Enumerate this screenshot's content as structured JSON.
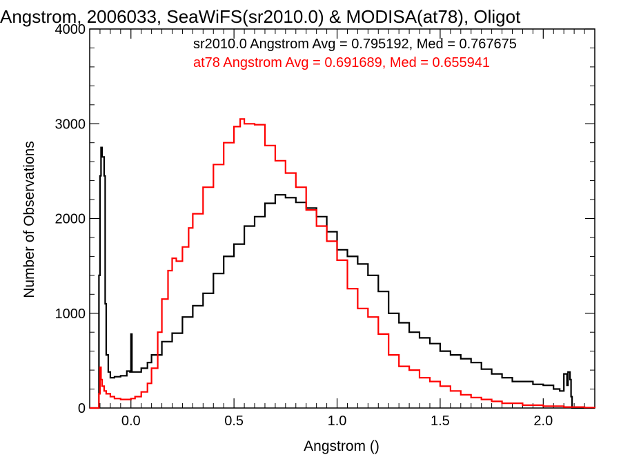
{
  "chart_data": {
    "type": "line",
    "title": "Angstrom, 2006033, SeaWiFS(sr2010.0) & MODISA(at78), Oligot",
    "xlabel": "Angstrom ()",
    "ylabel": "Number of Observations",
    "xlim": [
      -0.2,
      2.25
    ],
    "ylim": [
      0,
      4000
    ],
    "xticks": [
      0.0,
      0.5,
      1.0,
      1.5,
      2.0
    ],
    "xtick_labels": [
      "0.0",
      "0.5",
      "1.0",
      "1.5",
      "2.0"
    ],
    "yticks": [
      0,
      1000,
      2000,
      3000,
      4000
    ],
    "ytick_labels": [
      "0",
      "1000",
      "2000",
      "3000",
      "4000"
    ],
    "grid": false,
    "legend_position": "top-right",
    "legend": [
      "sr2010.0 Angstrom Avg = 0.795192, Med = 0.767675",
      "at78 Angstrom Avg = 0.691689, Med = 0.655941"
    ],
    "series": [
      {
        "name": "sr2010.0",
        "color": "#000000",
        "style": "step",
        "x": [
          -0.2,
          -0.16,
          -0.155,
          -0.15,
          -0.145,
          -0.14,
          -0.13,
          -0.125,
          -0.12,
          -0.11,
          -0.1,
          -0.08,
          -0.05,
          -0.02,
          -0.005,
          0.0,
          0.005,
          0.02,
          0.05,
          0.08,
          0.1,
          0.15,
          0.2,
          0.25,
          0.3,
          0.35,
          0.4,
          0.45,
          0.5,
          0.55,
          0.6,
          0.65,
          0.7,
          0.75,
          0.8,
          0.85,
          0.9,
          0.95,
          1.0,
          1.05,
          1.1,
          1.15,
          1.2,
          1.25,
          1.3,
          1.35,
          1.4,
          1.45,
          1.5,
          1.55,
          1.6,
          1.65,
          1.7,
          1.75,
          1.8,
          1.85,
          1.9,
          1.95,
          2.0,
          2.05,
          2.08,
          2.1,
          2.115,
          2.12,
          2.13,
          2.135,
          2.14,
          2.15,
          2.25
        ],
        "values": [
          0,
          0,
          1400,
          2450,
          2750,
          2650,
          2450,
          1100,
          560,
          380,
          320,
          330,
          340,
          390,
          380,
          780,
          380,
          380,
          420,
          480,
          560,
          700,
          790,
          960,
          1080,
          1210,
          1420,
          1600,
          1730,
          1920,
          2020,
          2160,
          2250,
          2220,
          2170,
          2110,
          2020,
          1860,
          1670,
          1600,
          1520,
          1400,
          1230,
          1000,
          900,
          800,
          740,
          680,
          600,
          560,
          520,
          480,
          410,
          360,
          320,
          280,
          280,
          250,
          240,
          200,
          180,
          360,
          240,
          380,
          300,
          120,
          0,
          0,
          0
        ]
      },
      {
        "name": "at78",
        "color": "#ff0000",
        "style": "step",
        "x": [
          -0.2,
          -0.16,
          -0.155,
          -0.15,
          -0.145,
          -0.14,
          -0.13,
          -0.12,
          -0.1,
          -0.08,
          -0.05,
          -0.02,
          0.0,
          0.02,
          0.05,
          0.08,
          0.1,
          0.13,
          0.15,
          0.18,
          0.2,
          0.22,
          0.25,
          0.28,
          0.3,
          0.35,
          0.4,
          0.45,
          0.5,
          0.53,
          0.55,
          0.6,
          0.65,
          0.7,
          0.75,
          0.8,
          0.85,
          0.9,
          0.95,
          1.0,
          1.05,
          1.1,
          1.15,
          1.2,
          1.25,
          1.3,
          1.35,
          1.4,
          1.45,
          1.5,
          1.55,
          1.6,
          1.65,
          1.7,
          1.75,
          1.8,
          1.9,
          2.0,
          2.1,
          2.2,
          2.25
        ],
        "values": [
          0,
          0,
          150,
          430,
          300,
          230,
          180,
          150,
          120,
          100,
          90,
          90,
          100,
          120,
          170,
          260,
          420,
          800,
          1150,
          1450,
          1580,
          1550,
          1700,
          1900,
          2050,
          2330,
          2570,
          2800,
          2970,
          3050,
          3000,
          2990,
          2770,
          2610,
          2480,
          2330,
          2090,
          1920,
          1760,
          1560,
          1260,
          1050,
          960,
          780,
          560,
          440,
          400,
          320,
          280,
          230,
          180,
          140,
          110,
          90,
          70,
          50,
          30,
          20,
          10,
          5,
          0
        ]
      }
    ]
  }
}
